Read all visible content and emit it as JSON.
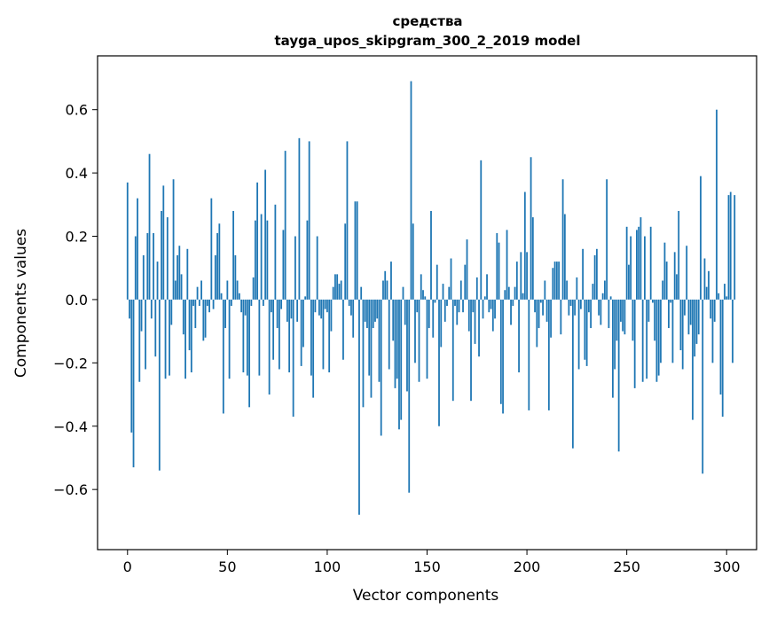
{
  "chart_data": {
    "type": "bar",
    "title": [
      "средства",
      "tayga_upos_skipgram_300_2_2019 model"
    ],
    "xlabel": "Vector components",
    "ylabel": "Components values",
    "xlim": [
      -15,
      315
    ],
    "ylim": [
      -0.79,
      0.77
    ],
    "x_ticks": [
      0,
      50,
      100,
      150,
      200,
      250,
      300
    ],
    "x_tick_labels": [
      "0",
      "50",
      "100",
      "150",
      "200",
      "250",
      "300"
    ],
    "y_ticks": [
      -0.6,
      -0.4,
      -0.2,
      0.0,
      0.2,
      0.4,
      0.6
    ],
    "y_tick_labels": [
      "−0.6",
      "−0.4",
      "−0.2",
      "0.0",
      "0.2",
      "0.4",
      "0.6"
    ],
    "grid": false,
    "bar_color": "#1f77b4",
    "x_start": 0,
    "values": [
      0.37,
      -0.06,
      -0.42,
      -0.53,
      0.2,
      0.32,
      -0.26,
      -0.1,
      0.14,
      -0.22,
      0.21,
      0.46,
      -0.06,
      0.21,
      -0.18,
      0.12,
      -0.54,
      0.28,
      0.36,
      -0.25,
      0.26,
      -0.24,
      -0.08,
      0.38,
      0.06,
      0.14,
      0.17,
      0.08,
      -0.11,
      -0.25,
      0.16,
      -0.16,
      -0.23,
      -0.02,
      -0.09,
      0.04,
      -0.02,
      0.06,
      -0.13,
      -0.12,
      -0.02,
      -0.04,
      0.32,
      -0.03,
      0.14,
      0.21,
      0.24,
      0.02,
      -0.36,
      -0.09,
      0.06,
      -0.25,
      -0.02,
      0.28,
      0.14,
      0.06,
      0.02,
      -0.04,
      -0.23,
      -0.05,
      -0.24,
      -0.34,
      -0.02,
      0.07,
      0.25,
      0.37,
      -0.24,
      0.27,
      -0.02,
      0.41,
      0.25,
      -0.3,
      -0.04,
      -0.19,
      0.3,
      -0.09,
      -0.22,
      -0.03,
      0.22,
      0.47,
      -0.07,
      -0.23,
      -0.06,
      -0.37,
      0.2,
      -0.07,
      0.51,
      -0.21,
      -0.15,
      0.01,
      0.25,
      0.5,
      -0.24,
      -0.31,
      -0.04,
      0.2,
      -0.05,
      -0.06,
      -0.22,
      -0.03,
      -0.04,
      -0.23,
      -0.1,
      0.04,
      0.08,
      0.08,
      0.05,
      0.06,
      -0.19,
      0.24,
      0.5,
      -0.02,
      -0.05,
      -0.12,
      0.31,
      0.31,
      -0.68,
      0.04,
      -0.34,
      -0.07,
      -0.09,
      -0.24,
      -0.31,
      -0.09,
      -0.07,
      -0.06,
      -0.26,
      -0.43,
      0.06,
      0.09,
      0.06,
      -0.22,
      0.12,
      -0.13,
      -0.28,
      -0.25,
      -0.41,
      -0.38,
      0.04,
      -0.08,
      -0.29,
      -0.61,
      0.69,
      0.24,
      -0.2,
      -0.04,
      -0.26,
      0.08,
      0.03,
      0.01,
      -0.25,
      -0.09,
      0.28,
      -0.12,
      -0.01,
      0.11,
      -0.4,
      -0.15,
      0.05,
      -0.07,
      -0.02,
      0.04,
      0.13,
      -0.32,
      -0.02,
      -0.08,
      -0.04,
      0.06,
      -0.04,
      0.11,
      0.19,
      -0.1,
      -0.32,
      -0.04,
      -0.14,
      0.07,
      -0.18,
      0.44,
      -0.06,
      0.01,
      0.08,
      -0.04,
      -0.03,
      -0.1,
      -0.06,
      0.21,
      0.18,
      -0.33,
      -0.36,
      0.03,
      0.22,
      0.04,
      -0.08,
      -0.02,
      0.04,
      0.12,
      -0.23,
      0.15,
      0.02,
      0.34,
      0.15,
      -0.35,
      0.45,
      0.26,
      -0.04,
      -0.15,
      -0.09,
      -0.01,
      -0.05,
      0.06,
      -0.07,
      -0.35,
      -0.12,
      0.1,
      0.12,
      0.12,
      0.12,
      -0.11,
      0.38,
      0.27,
      0.06,
      -0.05,
      -0.02,
      -0.47,
      -0.05,
      0.07,
      -0.22,
      -0.03,
      0.16,
      -0.19,
      -0.21,
      -0.04,
      -0.09,
      0.05,
      0.14,
      0.16,
      -0.05,
      -0.08,
      0.02,
      0.06,
      0.38,
      -0.09,
      0.01,
      -0.31,
      -0.22,
      -0.13,
      -0.48,
      -0.07,
      -0.1,
      -0.11,
      0.23,
      0.11,
      0.2,
      -0.13,
      -0.28,
      0.22,
      0.23,
      0.26,
      -0.26,
      0.2,
      -0.25,
      -0.07,
      0.23,
      -0.01,
      -0.13,
      -0.26,
      -0.24,
      -0.2,
      0.06,
      0.18,
      0.12,
      -0.09,
      -0.01,
      -0.2,
      0.15,
      0.08,
      0.28,
      -0.16,
      -0.22,
      -0.05,
      0.17,
      -0.11,
      -0.08,
      -0.38,
      -0.18,
      -0.14,
      -0.11,
      0.39,
      -0.55,
      0.13,
      0.04,
      0.09,
      -0.06,
      -0.2,
      -0.07,
      0.6,
      0.02,
      -0.3,
      -0.37,
      0.05,
      0.01,
      0.33,
      0.34,
      -0.2,
      0.33
    ]
  }
}
